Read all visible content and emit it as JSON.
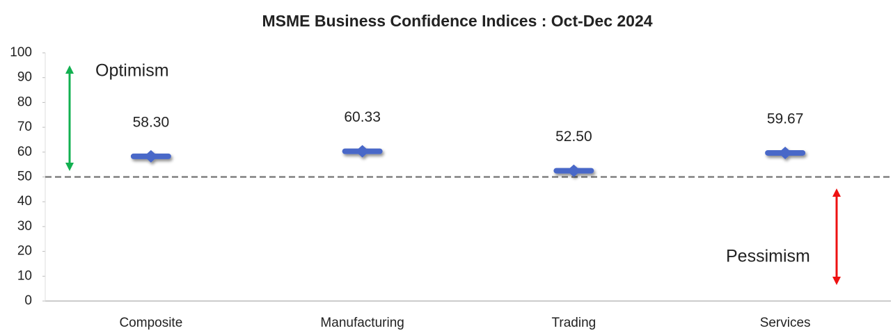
{
  "chart_data": {
    "type": "dot",
    "title": "MSME Business Confidence Indices : Oct-Dec 2024",
    "categories": [
      "Composite",
      "Manufacturing",
      "Trading",
      "Services"
    ],
    "values": [
      58.3,
      60.33,
      52.5,
      59.67
    ],
    "value_labels": [
      "58.30",
      "60.33",
      "52.50",
      "59.67"
    ],
    "color": "#4a68c8",
    "ylim": [
      0,
      100
    ],
    "yticks": [
      0,
      10,
      20,
      30,
      40,
      50,
      60,
      70,
      80,
      90,
      100
    ],
    "reference_line": 50,
    "annotations": [
      "Optimism",
      "Pessimism"
    ]
  }
}
